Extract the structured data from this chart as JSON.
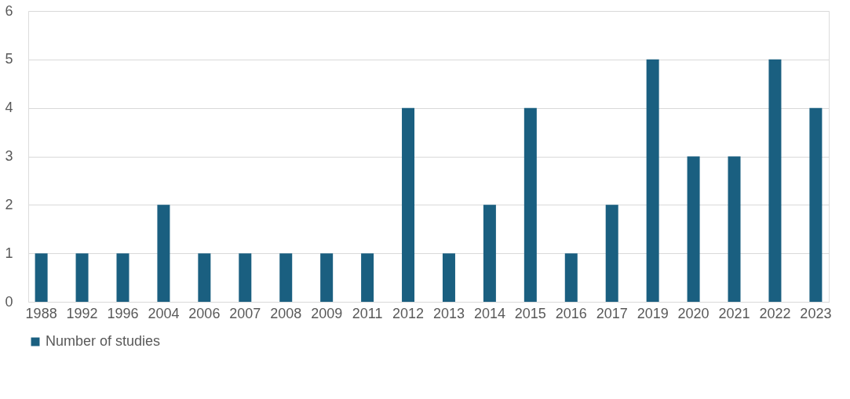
{
  "chart_data": {
    "type": "bar",
    "categories": [
      "1988",
      "1992",
      "1996",
      "2004",
      "2006",
      "2007",
      "2008",
      "2009",
      "2011",
      "2012",
      "2013",
      "2014",
      "2015",
      "2016",
      "2017",
      "2019",
      "2020",
      "2021",
      "2022",
      "2023"
    ],
    "series": [
      {
        "name": "Number of studies",
        "color": "#1a5f80",
        "values": [
          1,
          1,
          1,
          2,
          1,
          1,
          1,
          1,
          1,
          4,
          1,
          2,
          4,
          1,
          2,
          5,
          3,
          3,
          5,
          4
        ]
      }
    ],
    "ylim": [
      0,
      6
    ],
    "yticks": [
      0,
      1,
      2,
      3,
      4,
      5,
      6
    ],
    "grid": "y",
    "legend": "bottom"
  }
}
